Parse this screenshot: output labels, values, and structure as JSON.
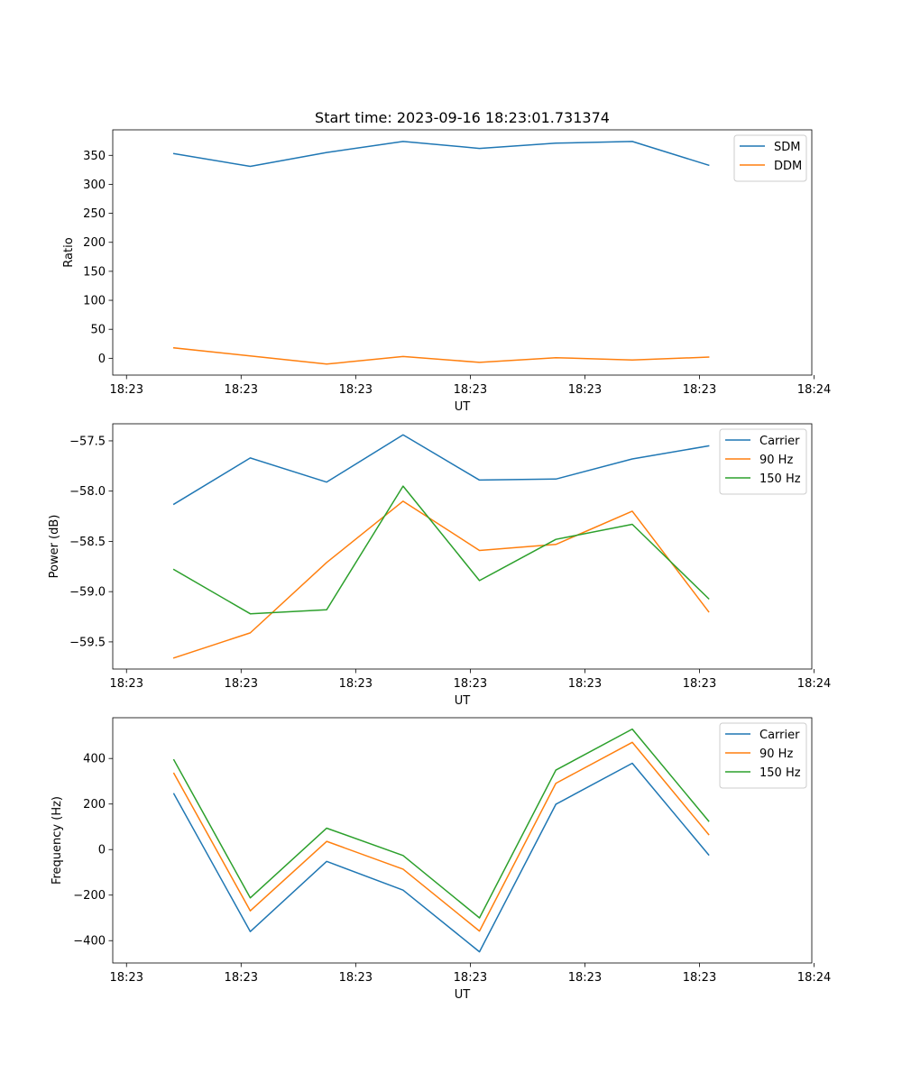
{
  "figure_title": "Start time: 2023-09-16 18:23:01.731374",
  "colors": {
    "blue": "#1f77b4",
    "orange": "#ff7f0e",
    "green": "#2ca02c"
  },
  "chart_data": [
    {
      "type": "line",
      "title": "Start time: 2023-09-16 18:23:01.731374",
      "xlabel": "UT",
      "ylabel": "Ratio",
      "x": [
        1,
        2,
        3,
        4,
        5,
        6,
        7,
        8
      ],
      "xlim": [
        0.2,
        9.35
      ],
      "xticks": [
        0.38,
        1.88,
        3.38,
        4.88,
        6.38,
        7.88,
        9.38
      ],
      "xtick_labels": [
        "18:23",
        "18:23",
        "18:23",
        "18:23",
        "18:23",
        "18:23",
        "18:24"
      ],
      "ylim": [
        -29,
        394
      ],
      "yticks": [
        0,
        50,
        100,
        150,
        200,
        250,
        300,
        350
      ],
      "ytick_labels": [
        "0",
        "50",
        "100",
        "150",
        "200",
        "250",
        "300",
        "350"
      ],
      "legend_position": "top-right",
      "series": [
        {
          "name": "SDM",
          "color": "#1f77b4",
          "values": [
            353,
            331,
            355,
            374,
            362,
            371,
            374,
            333
          ]
        },
        {
          "name": "DDM",
          "color": "#ff7f0e",
          "values": [
            18,
            4,
            -10,
            3,
            -7,
            1,
            -3,
            2
          ]
        }
      ]
    },
    {
      "type": "line",
      "title": "",
      "xlabel": "UT",
      "ylabel": "Power (dB)",
      "x": [
        1,
        2,
        3,
        4,
        5,
        6,
        7,
        8
      ],
      "xlim": [
        0.2,
        9.35
      ],
      "xticks": [
        0.38,
        1.88,
        3.38,
        4.88,
        6.38,
        7.88,
        9.38
      ],
      "xtick_labels": [
        "18:23",
        "18:23",
        "18:23",
        "18:23",
        "18:23",
        "18:23",
        "18:24"
      ],
      "ylim": [
        -59.77,
        -57.33
      ],
      "yticks": [
        -59.5,
        -59.0,
        -58.5,
        -58.0,
        -57.5
      ],
      "ytick_labels": [
        "−59.5",
        "−59.0",
        "−58.5",
        "−58.0",
        "−57.5"
      ],
      "legend_position": "top-right",
      "series": [
        {
          "name": "Carrier",
          "color": "#1f77b4",
          "values": [
            -58.13,
            -57.67,
            -57.91,
            -57.44,
            -57.89,
            -57.88,
            -57.68,
            -57.55
          ]
        },
        {
          "name": "90 Hz",
          "color": "#ff7f0e",
          "values": [
            -59.66,
            -59.41,
            -58.71,
            -58.1,
            -58.59,
            -58.53,
            -58.2,
            -59.2
          ]
        },
        {
          "name": "150 Hz",
          "color": "#2ca02c",
          "values": [
            -58.78,
            -59.22,
            -59.18,
            -57.95,
            -58.89,
            -58.48,
            -58.33,
            -59.07
          ]
        }
      ]
    },
    {
      "type": "line",
      "title": "",
      "xlabel": "UT",
      "ylabel": "Frequency (Hz)",
      "x": [
        1,
        2,
        3,
        4,
        5,
        6,
        7,
        8
      ],
      "xlim": [
        0.2,
        9.35
      ],
      "xticks": [
        0.38,
        1.88,
        3.38,
        4.88,
        6.38,
        7.88,
        9.38
      ],
      "xtick_labels": [
        "18:23",
        "18:23",
        "18:23",
        "18:23",
        "18:23",
        "18:23",
        "18:24"
      ],
      "ylim": [
        -498,
        579
      ],
      "yticks": [
        -400,
        -200,
        0,
        200,
        400
      ],
      "ytick_labels": [
        "−400",
        "−200",
        "0",
        "200",
        "400"
      ],
      "legend_position": "top-right",
      "series": [
        {
          "name": "Carrier",
          "color": "#1f77b4",
          "values": [
            245,
            -360,
            -52,
            -178,
            -449,
            199,
            379,
            -23
          ]
        },
        {
          "name": "90 Hz",
          "color": "#ff7f0e",
          "values": [
            335,
            -269,
            36,
            -86,
            -358,
            291,
            471,
            66
          ]
        },
        {
          "name": "150 Hz",
          "color": "#2ca02c",
          "values": [
            394,
            -212,
            94,
            -26,
            -300,
            349,
            529,
            125
          ]
        }
      ]
    }
  ]
}
